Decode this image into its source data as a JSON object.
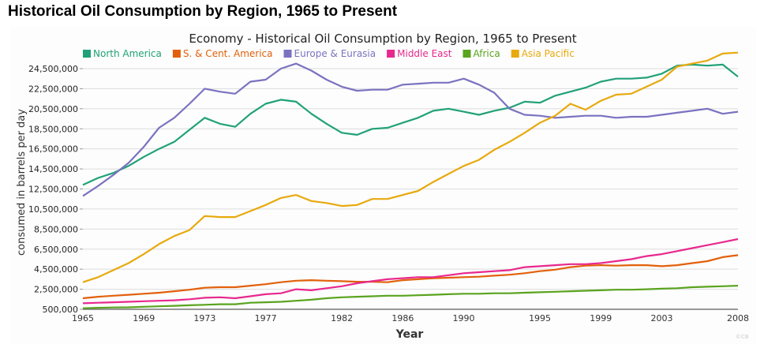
{
  "page": {
    "title": "Historical Oil Consumption by Region, 1965 to Present"
  },
  "chart_data": {
    "type": "line",
    "title": "Economy - Historical Oil Consumption by Region, 1965 to Present",
    "xlabel": "Year",
    "ylabel": "consumed in barrels per day",
    "credit": "©CB",
    "legend_position": "top-left",
    "grid": true,
    "xlim": [
      1965,
      2008
    ],
    "ylim": [
      500000,
      25500000
    ],
    "x_ticks": [
      1965,
      1969,
      1973,
      1977,
      1982,
      1986,
      1990,
      1995,
      1999,
      2003,
      2008
    ],
    "x_tick_labels": [
      "1965",
      "1969",
      "1973",
      "1977",
      "1982",
      "1986",
      "1990",
      "1995",
      "1999",
      "2003",
      "2008"
    ],
    "y_ticks": [
      500000,
      2500000,
      4500000,
      6500000,
      8500000,
      10500000,
      12500000,
      14500000,
      16500000,
      18500000,
      20500000,
      22500000,
      24500000
    ],
    "y_tick_labels": [
      "500,000",
      "2,500,000",
      "4,500,000",
      "6,500,000",
      "8,500,000",
      "10,500,000",
      "12,500,000",
      "14,500,000",
      "16,500,000",
      "18,500,000",
      "20,500,000",
      "22,500,000",
      "24,500,000"
    ],
    "x": [
      1965,
      1966,
      1967,
      1968,
      1969,
      1970,
      1971,
      1972,
      1973,
      1974,
      1975,
      1976,
      1977,
      1978,
      1979,
      1980,
      1981,
      1982,
      1983,
      1984,
      1985,
      1986,
      1987,
      1988,
      1989,
      1990,
      1991,
      1992,
      1993,
      1994,
      1995,
      1996,
      1997,
      1998,
      1999,
      2000,
      2001,
      2002,
      2003,
      2004,
      2005,
      2006,
      2007,
      2008
    ],
    "series": [
      {
        "name": "North America",
        "color": "#21a179",
        "values": [
          12900000,
          13600000,
          14100000,
          14800000,
          15700000,
          16500000,
          17200000,
          18400000,
          19600000,
          19000000,
          18700000,
          20000000,
          21000000,
          21400000,
          21200000,
          20000000,
          19000000,
          18100000,
          17900000,
          18500000,
          18600000,
          19100000,
          19600000,
          20300000,
          20500000,
          20200000,
          19900000,
          20300000,
          20600000,
          21200000,
          21100000,
          21800000,
          22200000,
          22600000,
          23200000,
          23500000,
          23500000,
          23600000,
          24000000,
          24800000,
          24900000,
          24800000,
          24900000,
          23700000
        ]
      },
      {
        "name": "S. & Cent. America",
        "color": "#e2600b",
        "values": [
          1600000,
          1750000,
          1850000,
          1950000,
          2050000,
          2150000,
          2300000,
          2450000,
          2650000,
          2700000,
          2700000,
          2850000,
          3000000,
          3200000,
          3350000,
          3400000,
          3350000,
          3300000,
          3250000,
          3250000,
          3200000,
          3400000,
          3500000,
          3600000,
          3650000,
          3700000,
          3750000,
          3850000,
          3950000,
          4100000,
          4300000,
          4450000,
          4700000,
          4850000,
          4900000,
          4850000,
          4900000,
          4900000,
          4800000,
          4900000,
          5100000,
          5300000,
          5700000,
          5900000
        ]
      },
      {
        "name": "Europe & Eurasia",
        "color": "#7b72c1",
        "values": [
          11800000,
          12800000,
          13900000,
          15100000,
          16700000,
          18600000,
          19600000,
          21000000,
          22500000,
          22200000,
          22000000,
          23200000,
          23400000,
          24500000,
          25000000,
          24300000,
          23400000,
          22700000,
          22300000,
          22400000,
          22400000,
          22900000,
          23000000,
          23100000,
          23100000,
          23500000,
          22900000,
          22100000,
          20500000,
          19900000,
          19800000,
          19600000,
          19700000,
          19800000,
          19800000,
          19600000,
          19700000,
          19700000,
          19900000,
          20100000,
          20300000,
          20500000,
          20000000,
          20200000
        ]
      },
      {
        "name": "Middle East",
        "color": "#e8288e",
        "values": [
          1100000,
          1150000,
          1200000,
          1250000,
          1300000,
          1350000,
          1400000,
          1500000,
          1650000,
          1700000,
          1600000,
          1800000,
          2000000,
          2100000,
          2500000,
          2400000,
          2600000,
          2800000,
          3100000,
          3300000,
          3500000,
          3600000,
          3700000,
          3700000,
          3900000,
          4100000,
          4200000,
          4300000,
          4400000,
          4700000,
          4800000,
          4900000,
          5000000,
          5000000,
          5100000,
          5300000,
          5500000,
          5800000,
          6000000,
          6300000,
          6600000,
          6900000,
          7200000,
          7500000
        ]
      },
      {
        "name": "Africa",
        "color": "#5aa31f",
        "values": [
          600000,
          650000,
          680000,
          700000,
          750000,
          800000,
          850000,
          900000,
          950000,
          1000000,
          1000000,
          1150000,
          1200000,
          1250000,
          1350000,
          1450000,
          1600000,
          1700000,
          1750000,
          1800000,
          1850000,
          1850000,
          1900000,
          1950000,
          2000000,
          2050000,
          2050000,
          2100000,
          2100000,
          2150000,
          2200000,
          2250000,
          2300000,
          2350000,
          2400000,
          2450000,
          2450000,
          2500000,
          2550000,
          2600000,
          2700000,
          2750000,
          2800000,
          2850000
        ]
      },
      {
        "name": "Asia Pacific",
        "color": "#e8a90e",
        "values": [
          3200000,
          3700000,
          4400000,
          5100000,
          6000000,
          7000000,
          7800000,
          8400000,
          9800000,
          9700000,
          9700000,
          10300000,
          10900000,
          11600000,
          11900000,
          11300000,
          11100000,
          10800000,
          10900000,
          11500000,
          11500000,
          11900000,
          12300000,
          13200000,
          14000000,
          14800000,
          15400000,
          16400000,
          17200000,
          18100000,
          19100000,
          19800000,
          21000000,
          20400000,
          21300000,
          21900000,
          22000000,
          22700000,
          23400000,
          24700000,
          25000000,
          25300000,
          26000000,
          26100000
        ]
      }
    ]
  }
}
